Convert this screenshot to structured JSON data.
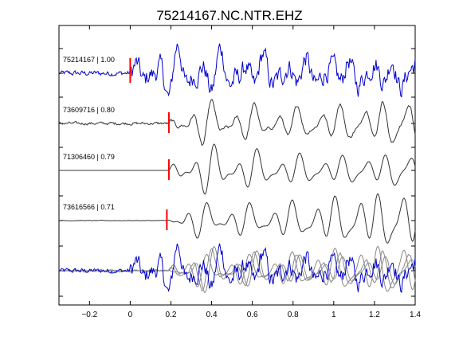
{
  "chart_data": {
    "type": "line",
    "title": "75214167.NC.NTR.EHZ",
    "xlabel": "",
    "ylabel": "",
    "xlim": [
      -0.35,
      1.4
    ],
    "xticks": [
      -0.2,
      0,
      0.2,
      0.4,
      0.6,
      0.8,
      1,
      1.2,
      1.4
    ],
    "xtick_labels": [
      "−0.2",
      "0",
      "0.2",
      "0.4",
      "0.6",
      "0.8",
      "1",
      "1.2",
      "1.4"
    ],
    "grid": false,
    "legend": "none",
    "colors": {
      "reference": "#0000cc",
      "trace": "#333333",
      "overlay": "#888888",
      "pick": "#ff0000"
    },
    "series": [
      {
        "name": "75214167 | 1.00",
        "color": "#0000cc",
        "pick_time": 0.0,
        "noise": 0.09,
        "amp": 0.42,
        "phase": 0.0
      },
      {
        "name": "73609716 | 0.80",
        "color": "#333333",
        "pick_time": 0.19,
        "noise": 0.05,
        "amp": 0.5,
        "phase": 1.3
      },
      {
        "name": "71306460 | 0.79",
        "color": "#333333",
        "pick_time": 0.19,
        "noise": 0.0,
        "amp": 0.45,
        "phase": 0.6
      },
      {
        "name": "73616566 | 0.71",
        "color": "#333333",
        "pick_time": 0.18,
        "noise": 0.01,
        "amp": 0.5,
        "phase": 2.1
      }
    ],
    "stack": {
      "label": "",
      "members": 4
    }
  }
}
